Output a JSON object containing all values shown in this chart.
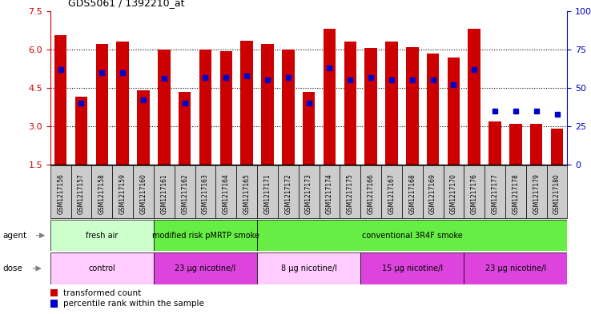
{
  "title": "GDS5061 / 1392210_at",
  "samples": [
    "GSM1217156",
    "GSM1217157",
    "GSM1217158",
    "GSM1217159",
    "GSM1217160",
    "GSM1217161",
    "GSM1217162",
    "GSM1217163",
    "GSM1217164",
    "GSM1217165",
    "GSM1217171",
    "GSM1217172",
    "GSM1217173",
    "GSM1217174",
    "GSM1217175",
    "GSM1217166",
    "GSM1217167",
    "GSM1217168",
    "GSM1217169",
    "GSM1217170",
    "GSM1217176",
    "GSM1217177",
    "GSM1217178",
    "GSM1217179",
    "GSM1217180"
  ],
  "bar_heights": [
    6.55,
    4.15,
    6.2,
    6.3,
    4.4,
    6.0,
    4.35,
    6.0,
    5.95,
    6.35,
    6.2,
    6.0,
    4.35,
    6.8,
    6.3,
    6.05,
    6.3,
    6.1,
    5.85,
    5.7,
    6.8,
    3.2,
    3.1,
    3.1,
    2.9
  ],
  "percentile_ranks": [
    62,
    40,
    60,
    60,
    42,
    56,
    40,
    57,
    57,
    58,
    55,
    57,
    40,
    63,
    55,
    57,
    55,
    55,
    55,
    52,
    62,
    35,
    35,
    35,
    33
  ],
  "ymin": 1.5,
  "ymax": 7.5,
  "yticks": [
    1.5,
    3.0,
    4.5,
    6.0,
    7.5
  ],
  "right_yticks": [
    0,
    25,
    50,
    75,
    100
  ],
  "bar_color": "#cc0000",
  "percentile_color": "#0000cc",
  "agent_groups": [
    {
      "label": "fresh air",
      "start": 0,
      "end": 5,
      "color": "#ccffcc"
    },
    {
      "label": "modified risk pMRTP smoke",
      "start": 5,
      "end": 10,
      "color": "#66ee44"
    },
    {
      "label": "conventional 3R4F smoke",
      "start": 10,
      "end": 25,
      "color": "#66ee44"
    }
  ],
  "dose_groups": [
    {
      "label": "control",
      "start": 0,
      "end": 5,
      "color": "#ffccff"
    },
    {
      "label": "23 μg nicotine/l",
      "start": 5,
      "end": 10,
      "color": "#dd44dd"
    },
    {
      "label": "8 μg nicotine/l",
      "start": 10,
      "end": 15,
      "color": "#ffccff"
    },
    {
      "label": "15 μg nicotine/l",
      "start": 15,
      "end": 20,
      "color": "#dd44dd"
    },
    {
      "label": "23 μg nicotine/l",
      "start": 20,
      "end": 25,
      "color": "#dd44dd"
    }
  ],
  "grid_lines": [
    3.0,
    4.5,
    6.0
  ],
  "xlabel_bg": "#cccccc",
  "legend_red_label": "transformed count",
  "legend_blue_label": "percentile rank within the sample",
  "agent_label": "agent",
  "dose_label": "dose"
}
